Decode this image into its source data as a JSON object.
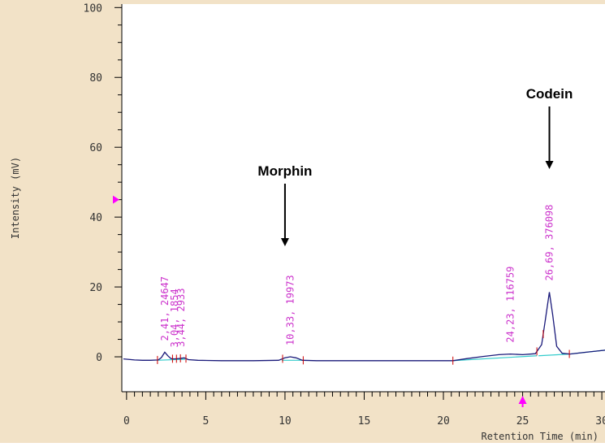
{
  "chart_data": {
    "type": "line",
    "xlabel": "Retention Time (min)",
    "ylabel": "Intensity (mV)",
    "xlim": [
      -0.3,
      30.2
    ],
    "ylim": [
      -10,
      101
    ],
    "x_ticks": [
      0,
      5,
      10,
      15,
      20,
      25,
      30
    ],
    "y_ticks": [
      0,
      20,
      40,
      60,
      80,
      100
    ],
    "grid": false,
    "colors": {
      "panel": "#f2e2c7",
      "trace": "#1a1a7a",
      "baseline": "#33cccc",
      "peak_label": "#cc33cc",
      "marker": "#ff00ff",
      "integration_tick": "#cc0000"
    },
    "series": [
      {
        "x": [
          -0.2,
          0.5,
          1.0,
          1.5,
          2.0,
          2.2,
          2.41,
          2.6,
          2.8,
          3.0,
          3.3,
          3.64,
          3.9,
          4.5,
          6,
          8,
          9.6,
          10.0,
          10.33,
          10.7,
          11.1,
          12,
          15,
          18,
          20.6,
          21.5,
          22.5,
          23.5,
          24.23,
          25.0,
          25.8,
          26.2,
          26.45,
          26.69,
          26.9,
          27.15,
          27.5,
          28.0,
          29.0,
          30.2
        ],
        "y": [
          -0.6,
          -0.9,
          -1.0,
          -1.0,
          -0.9,
          -0.2,
          1.3,
          0.3,
          -0.5,
          -0.6,
          -0.5,
          -0.3,
          -0.8,
          -1.0,
          -1.1,
          -1.1,
          -1.0,
          -0.3,
          0.0,
          -0.3,
          -1.0,
          -1.1,
          -1.1,
          -1.1,
          -1.1,
          -0.5,
          0.1,
          0.6,
          0.8,
          0.6,
          0.9,
          3.5,
          11.0,
          18.5,
          12.0,
          3.0,
          1.0,
          0.8,
          1.3,
          1.9
        ]
      }
    ],
    "baseline_segments": [
      [
        [
          1.9,
          -1.0
        ],
        [
          3.7,
          -0.7
        ]
      ],
      [
        [
          9.8,
          -1.0
        ],
        [
          11.2,
          -1.0
        ]
      ],
      [
        [
          20.6,
          -1.1
        ],
        [
          25.9,
          0.3
        ]
      ],
      [
        [
          26.0,
          0.3
        ],
        [
          28.0,
          0.8
        ]
      ],
      [
        [
          28.0,
          0.8
        ],
        [
          30.2,
          1.9
        ]
      ]
    ],
    "integration_ticks": [
      1.95,
      2.9,
      3.15,
      3.4,
      3.75,
      9.85,
      11.15,
      20.6,
      25.9,
      26.3,
      27.95
    ],
    "peak_labels": [
      {
        "x": 2.41,
        "text": "2,41, 24647"
      },
      {
        "x": 3.04,
        "text": "3,04, 1854"
      },
      {
        "x": 3.44,
        "text": "3,44, 2933"
      },
      {
        "x": 10.33,
        "text": "10,33, 19973"
      },
      {
        "x": 24.23,
        "text": "24,23, 116759"
      },
      {
        "x": 26.69,
        "text": "26,69, 376098"
      }
    ],
    "annotations": [
      {
        "text": "Morphin",
        "x": 10.0
      },
      {
        "text": "Codein",
        "x": 26.69
      }
    ],
    "markers": {
      "y_marker": 45,
      "x_marker": 25.0
    }
  }
}
